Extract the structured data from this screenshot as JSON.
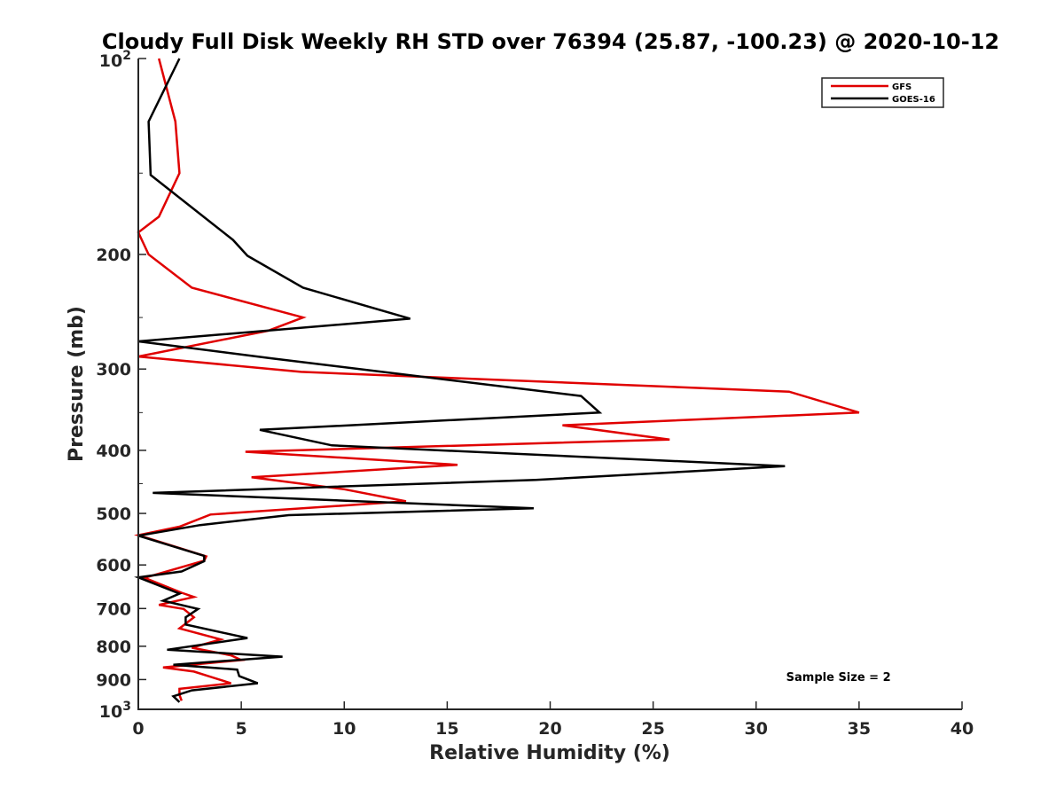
{
  "chart_data": {
    "type": "line",
    "title": "Cloudy Full Disk Weekly RH STD over 76394 (25.87, -100.23) @ 2020-10-12",
    "xlabel": "Relative Humidity (%)",
    "ylabel": "Pressure (mb)",
    "xlim": [
      0,
      40
    ],
    "ylim": [
      100,
      1000
    ],
    "y_scale": "log",
    "y_reversed": true,
    "grid": false,
    "legend_position": "top-right",
    "x_ticks": [
      0,
      5,
      10,
      15,
      20,
      25,
      30,
      35,
      40
    ],
    "y_tick_labels": [
      {
        "value": 100,
        "base": "10",
        "exp": "2"
      },
      {
        "value": 200,
        "text": "200"
      },
      {
        "value": 300,
        "text": "300"
      },
      {
        "value": 400,
        "text": "400"
      },
      {
        "value": 500,
        "text": "500"
      },
      {
        "value": 600,
        "text": "600"
      },
      {
        "value": 700,
        "text": "700"
      },
      {
        "value": 800,
        "text": "800"
      },
      {
        "value": 900,
        "text": "900"
      },
      {
        "value": 1000,
        "base": "10",
        "exp": "3"
      }
    ],
    "series": [
      {
        "name": "GFS",
        "color": "#e00000",
        "points": [
          [
            1.0,
            100
          ],
          [
            1.8,
            125
          ],
          [
            2.0,
            150
          ],
          [
            1.0,
            175
          ],
          [
            0.0,
            185
          ],
          [
            0.5,
            200
          ],
          [
            2.6,
            225
          ],
          [
            8.0,
            250
          ],
          [
            6.3,
            262
          ],
          [
            0.0,
            287
          ],
          [
            7.9,
            303
          ],
          [
            31.6,
            325
          ],
          [
            35.0,
            350
          ],
          [
            20.6,
            366
          ],
          [
            25.8,
            385
          ],
          [
            5.2,
            402
          ],
          [
            15.5,
            421
          ],
          [
            5.5,
            440
          ],
          [
            10.0,
            459
          ],
          [
            13.0,
            479
          ],
          [
            3.5,
            502
          ],
          [
            2.0,
            524
          ],
          [
            0.0,
            540
          ],
          [
            3.3,
            582
          ],
          [
            3.2,
            591
          ],
          [
            0.3,
            628
          ],
          [
            2.1,
            662
          ],
          [
            2.7,
            672
          ],
          [
            1.0,
            691
          ],
          [
            2.2,
            701
          ],
          [
            2.7,
            722
          ],
          [
            2.0,
            751
          ],
          [
            4.0,
            781
          ],
          [
            2.6,
            804
          ],
          [
            4.5,
            826
          ],
          [
            5.0,
            840
          ],
          [
            1.2,
            862
          ],
          [
            2.7,
            875
          ],
          [
            4.5,
            912
          ],
          [
            2.0,
            930
          ],
          [
            2.0,
            950
          ],
          [
            2.1,
            970
          ]
        ]
      },
      {
        "name": "GOES-16",
        "color": "#000000",
        "points": [
          [
            2.0,
            100
          ],
          [
            0.5,
            125
          ],
          [
            0.6,
            151
          ],
          [
            4.6,
            190
          ],
          [
            5.3,
            201
          ],
          [
            8.0,
            225
          ],
          [
            13.2,
            251
          ],
          [
            0.0,
            272
          ],
          [
            6.5,
            289
          ],
          [
            21.5,
            330
          ],
          [
            22.4,
            350
          ],
          [
            5.9,
            372
          ],
          [
            9.4,
            393
          ],
          [
            31.4,
            423
          ],
          [
            19.3,
            444
          ],
          [
            0.7,
            465
          ],
          [
            19.2,
            491
          ],
          [
            7.3,
            503
          ],
          [
            3.0,
            521
          ],
          [
            0.0,
            541
          ],
          [
            3.2,
            581
          ],
          [
            3.2,
            592
          ],
          [
            2.1,
            614
          ],
          [
            0.0,
            627
          ],
          [
            2.0,
            664
          ],
          [
            1.2,
            681
          ],
          [
            2.9,
            701
          ],
          [
            2.3,
            722
          ],
          [
            2.3,
            741
          ],
          [
            5.3,
            777
          ],
          [
            1.4,
            810
          ],
          [
            7.0,
            830
          ],
          [
            1.7,
            854
          ],
          [
            4.8,
            869
          ],
          [
            4.9,
            889
          ],
          [
            5.8,
            912
          ],
          [
            2.6,
            935
          ],
          [
            1.7,
            955
          ],
          [
            2.0,
            975
          ]
        ]
      }
    ],
    "annotations": [
      {
        "text": "Sample Size = 2",
        "x": 34,
        "y": 905
      }
    ]
  }
}
